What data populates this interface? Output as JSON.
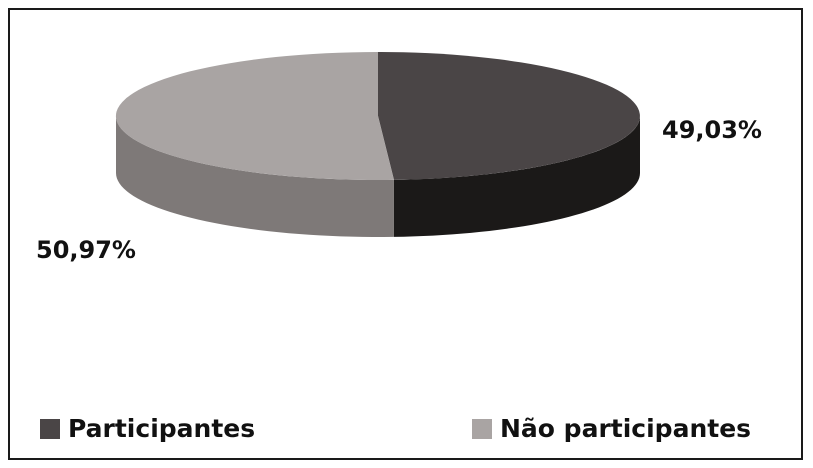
{
  "chart_data": {
    "type": "pie",
    "style": "3d",
    "slices": [
      {
        "name": "Participantes",
        "value": 49.03,
        "label": "49,03%",
        "color": "#4a4546",
        "side_color": "#1b1918"
      },
      {
        "name": "Não participantes",
        "value": 50.97,
        "label": "50,97%",
        "color": "#a9a4a3",
        "side_color": "#7e7978"
      }
    ],
    "legend": {
      "placement": "bottom",
      "items": [
        {
          "label": "Participantes",
          "color": "#4a4546"
        },
        {
          "label": "Não participantes",
          "color": "#a9a4a3"
        }
      ]
    }
  }
}
